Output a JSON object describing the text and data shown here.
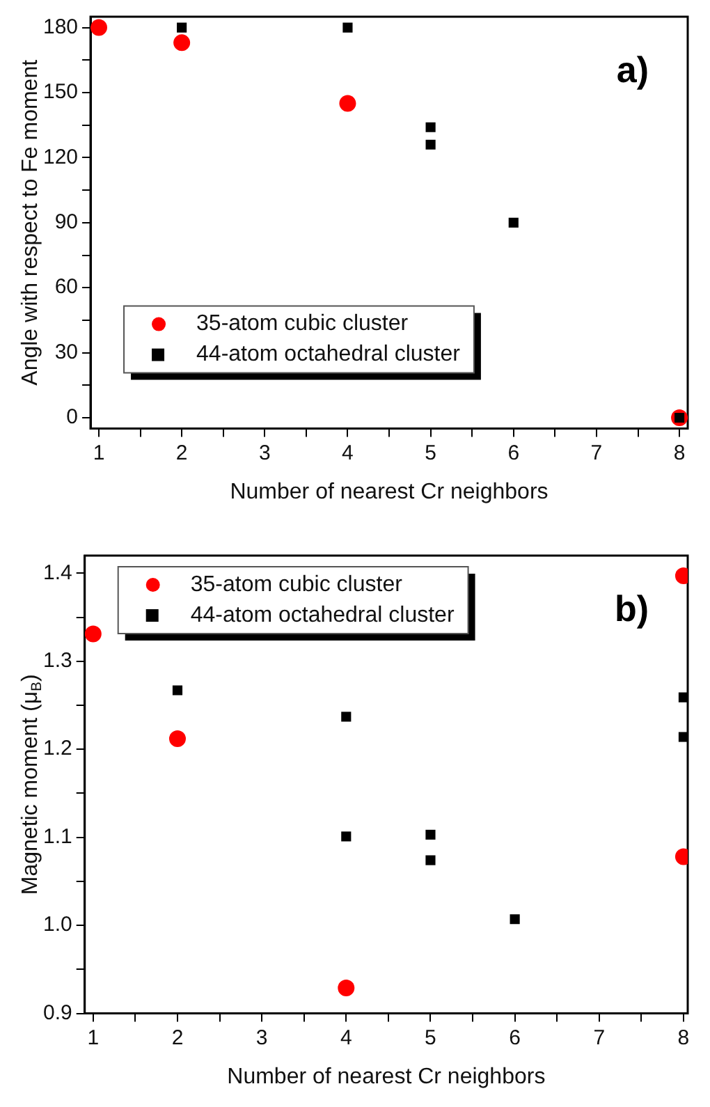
{
  "chart_data": [
    {
      "type": "scatter",
      "xlabel": "Number of nearest Cr neighbors",
      "ylabel": "Angle with respect to Fe moment",
      "annotations": [
        "a)"
      ],
      "xlim": [
        0.9,
        8.1
      ],
      "xticks": [
        1,
        {
          "value": 1.5,
          "label": null
        },
        2,
        {
          "value": 2.5,
          "label": null
        },
        3,
        {
          "value": 3.5,
          "label": null
        },
        4,
        {
          "value": 4.5,
          "label": null
        },
        5,
        {
          "value": 5.5,
          "label": null
        },
        6,
        {
          "value": 6.5,
          "label": null
        },
        7,
        {
          "value": 7.5,
          "label": null
        },
        8
      ],
      "ylim": [
        -5,
        185
      ],
      "yticks": [
        0,
        {
          "value": 15,
          "label": null
        },
        30,
        {
          "value": 45,
          "label": null
        },
        60,
        {
          "value": 75,
          "label": null
        },
        90,
        {
          "value": 105,
          "label": null
        },
        120,
        {
          "value": 135,
          "label": null
        },
        150,
        {
          "value": 165,
          "label": null
        },
        180
      ],
      "grid": false,
      "legend": "bottom left",
      "series": [
        {
          "name": "35-atom cubic cluster",
          "color": "#ff0000",
          "marker": "circle",
          "x": [
            1,
            2,
            4,
            8
          ],
          "values": [
            180,
            173,
            145,
            0
          ]
        },
        {
          "name": "44-atom octahedral cluster",
          "color": "#000000",
          "marker": "square",
          "x": [
            2,
            4,
            5,
            5,
            6,
            8
          ],
          "values": [
            180,
            180,
            134,
            126,
            90,
            0
          ]
        }
      ]
    },
    {
      "type": "scatter",
      "xlabel": "Number of nearest Cr neighbors",
      "ylabel": "Magnetic moment (μ$_{B}$)",
      "annotations": [
        "b)"
      ],
      "xlim": [
        0.9,
        8.05
      ],
      "xticks": [
        1,
        {
          "value": 1.5,
          "label": null
        },
        2,
        {
          "value": 2.5,
          "label": null
        },
        3,
        {
          "value": 3.5,
          "label": null
        },
        4,
        {
          "value": 4.5,
          "label": null
        },
        5,
        {
          "value": 5.5,
          "label": null
        },
        6,
        {
          "value": 6.5,
          "label": null
        },
        7,
        {
          "value": 7.5,
          "label": null
        },
        8
      ],
      "ylim": [
        0.9,
        1.42
      ],
      "yticks": [
        {
          "value": 0.9,
          "label": "0.9"
        },
        {
          "value": 0.95,
          "label": null
        },
        {
          "value": 1.0,
          "label": "1.0"
        },
        {
          "value": 1.05,
          "label": null
        },
        {
          "value": 1.1,
          "label": "1.1"
        },
        {
          "value": 1.15,
          "label": null
        },
        {
          "value": 1.2,
          "label": "1.2"
        },
        {
          "value": 1.25,
          "label": null
        },
        {
          "value": 1.3,
          "label": "1.3"
        },
        {
          "value": 1.35,
          "label": null
        },
        {
          "value": 1.4,
          "label": "1.4"
        }
      ],
      "grid": false,
      "legend": "top left",
      "series": [
        {
          "name": "35-atom cubic cluster",
          "color": "#ff0000",
          "marker": "circle",
          "x": [
            1,
            2,
            4,
            8,
            8
          ],
          "values": [
            1.331,
            1.212,
            0.929,
            1.397,
            1.078
          ]
        },
        {
          "name": "44-atom octahedral cluster",
          "color": "#000000",
          "marker": "square",
          "x": [
            2,
            4,
            4,
            5,
            5,
            6,
            8,
            8
          ],
          "values": [
            1.267,
            1.237,
            1.101,
            1.103,
            1.074,
            1.007,
            1.259,
            1.214
          ]
        }
      ]
    }
  ]
}
